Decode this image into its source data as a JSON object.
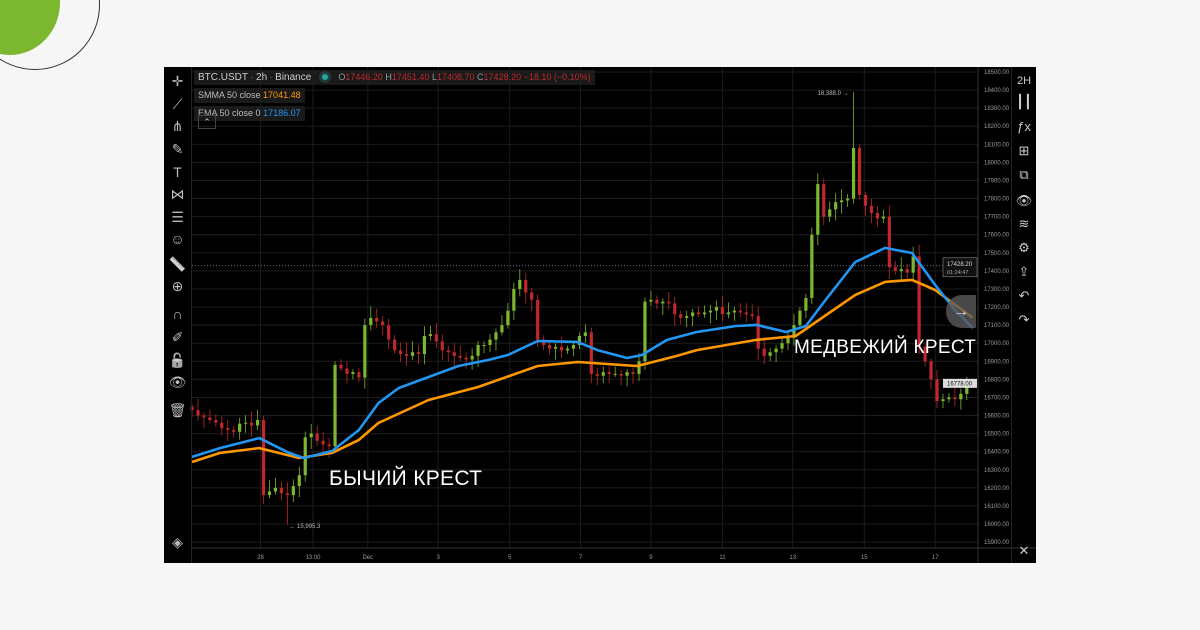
{
  "header": {
    "symbol": "BTC.USDT",
    "interval": "2h",
    "exchange": "Binance",
    "open_label": "O",
    "open": "17446.20",
    "high_label": "H",
    "high": "17451.40",
    "low_label": "L",
    "low": "17408.70",
    "close_label": "C",
    "close": "17428.20",
    "change": "−18.10 (−0.10%)"
  },
  "indicators": [
    {
      "label": "SMMA 50 close",
      "value": "17041.48",
      "color": "#ff9800"
    },
    {
      "label": "EMA 50 close 0",
      "value": "17186.07",
      "color": "#2196f3"
    }
  ],
  "collapse_icon": "chevron-up-icon",
  "annotations": {
    "bull": "БЫЧИЙ КРЕСТ",
    "bear": "МЕДВЕЖИЙ КРЕСТ",
    "high": "18,388.0 →",
    "low": "← 15,995.3"
  },
  "price_labels": {
    "last": "17428.20",
    "countdown": "01:24:47",
    "current": "16778.00"
  },
  "right_toolbar": {
    "interval": "2H",
    "icons": [
      "candles-icon",
      "fx-icon",
      "crosshair-box-icon",
      "compare-icon",
      "eye-icon",
      "layers-icon",
      "gear-icon",
      "share-icon",
      "undo-icon",
      "redo-icon",
      "close-icon"
    ]
  },
  "left_toolbar": [
    "crosshair-icon",
    "trendline-icon",
    "fork-icon",
    "brush-icon",
    "text-icon",
    "pattern-icon",
    "measure-lines-icon",
    "emoji-icon",
    "ruler-icon",
    "zoom-in-icon",
    "magnet-icon",
    "lock-pencil-icon",
    "unlock-icon",
    "eye-icon",
    "trash-icon",
    "layers-icon"
  ],
  "colors": {
    "up": "#7cb82f",
    "down": "#c0282b",
    "ema": "#2196f3",
    "smma": "#ff9800"
  },
  "chart_data": {
    "type": "candlestick",
    "ylim": [
      15900,
      18500
    ],
    "y_ticks": [
      15900,
      16000,
      16100,
      16200,
      16300,
      16400,
      16500,
      16600,
      16700,
      16800,
      16900,
      17000,
      17100,
      17200,
      17300,
      17400,
      17500,
      17600,
      17700,
      17800,
      17900,
      18000,
      18100,
      18200,
      18300,
      18400,
      18500
    ],
    "x_ticks": [
      {
        "label": "28",
        "idx": 11.5
      },
      {
        "label": "13:00",
        "idx": 20.3
      },
      {
        "label": "Dec",
        "idx": 29.5
      },
      {
        "label": "3",
        "idx": 41.3
      },
      {
        "label": "5",
        "idx": 53.3
      },
      {
        "label": "7",
        "idx": 65.2
      },
      {
        "label": "9",
        "idx": 77
      },
      {
        "label": "11",
        "idx": 89
      },
      {
        "label": "13",
        "idx": 100.8
      },
      {
        "label": "15",
        "idx": 112.8
      },
      {
        "label": "17",
        "idx": 124.7
      }
    ],
    "start_open": 16650,
    "closes": [
      16630,
      16600,
      16590,
      16575,
      16560,
      16530,
      16520,
      16510,
      16555,
      16560,
      16545,
      16575,
      16160,
      16180,
      16200,
      16170,
      16160,
      16210,
      16270,
      16480,
      16500,
      16460,
      16440,
      16430,
      16880,
      16860,
      16830,
      16840,
      16810,
      17100,
      17140,
      17120,
      17100,
      17020,
      16960,
      16940,
      16930,
      16950,
      16940,
      17040,
      17050,
      17010,
      16960,
      16950,
      16930,
      16920,
      16910,
      16930,
      16990,
      16990,
      17020,
      17060,
      17100,
      17180,
      17300,
      17350,
      17280,
      17240,
      17020,
      16990,
      16970,
      16980,
      16960,
      16970,
      16990,
      17040,
      17060,
      16830,
      16820,
      16840,
      16830,
      16830,
      16820,
      16840,
      16830,
      16900,
      17230,
      17240,
      17220,
      17230,
      17220,
      17160,
      17140,
      17150,
      17170,
      17160,
      17170,
      17180,
      17200,
      17160,
      17170,
      17180,
      17170,
      17160,
      17150,
      16970,
      16930,
      16950,
      16970,
      17000,
      17030,
      17100,
      17180,
      17250,
      17600,
      17880,
      17700,
      17740,
      17780,
      17790,
      17800,
      18080,
      17820,
      17760,
      17720,
      17690,
      17700,
      17420,
      17400,
      17410,
      17390,
      17480,
      16980,
      16900,
      16800,
      16680,
      16690,
      16700,
      16690,
      16720,
      16778
    ],
    "extremes": {
      "high": 18388.0,
      "low": 15995.3
    },
    "current_price": 17428.2,
    "series": [
      {
        "name": "EMA 50 close 0",
        "points": [
          [
            0,
            16371
          ],
          [
            4.7,
            16420
          ],
          [
            11.3,
            16475
          ],
          [
            16.3,
            16393
          ],
          [
            18.8,
            16365
          ],
          [
            23.5,
            16404
          ],
          [
            28,
            16520
          ],
          [
            31.3,
            16669
          ],
          [
            34.7,
            16752
          ],
          [
            39.7,
            16813
          ],
          [
            44.7,
            16874
          ],
          [
            49.7,
            16907
          ],
          [
            53,
            16935
          ],
          [
            58,
            17012
          ],
          [
            64.7,
            17007
          ],
          [
            68,
            16962
          ],
          [
            73,
            16918
          ],
          [
            75.5,
            16935
          ],
          [
            79.7,
            17018
          ],
          [
            84.7,
            17062
          ],
          [
            91.3,
            17095
          ],
          [
            94.7,
            17101
          ],
          [
            99.7,
            17062
          ],
          [
            103,
            17095
          ],
          [
            106.3,
            17239
          ],
          [
            111.3,
            17449
          ],
          [
            116.3,
            17527
          ],
          [
            120.8,
            17499
          ],
          [
            124.7,
            17322
          ],
          [
            128,
            17184
          ],
          [
            131,
            17084
          ]
        ]
      },
      {
        "name": "SMMA 50 close",
        "points": [
          [
            0,
            16343
          ],
          [
            4.7,
            16393
          ],
          [
            11.3,
            16420
          ],
          [
            18,
            16365
          ],
          [
            23.5,
            16393
          ],
          [
            28,
            16465
          ],
          [
            31.3,
            16559
          ],
          [
            39.7,
            16686
          ],
          [
            48,
            16758
          ],
          [
            58,
            16874
          ],
          [
            64.7,
            16896
          ],
          [
            74.7,
            16874
          ],
          [
            81.3,
            16929
          ],
          [
            84.7,
            16962
          ],
          [
            94.7,
            17018
          ],
          [
            101.3,
            17040
          ],
          [
            104.7,
            17117
          ],
          [
            111.3,
            17267
          ],
          [
            116.3,
            17339
          ],
          [
            120.8,
            17350
          ],
          [
            124.7,
            17294
          ],
          [
            131,
            17140
          ]
        ]
      }
    ]
  }
}
